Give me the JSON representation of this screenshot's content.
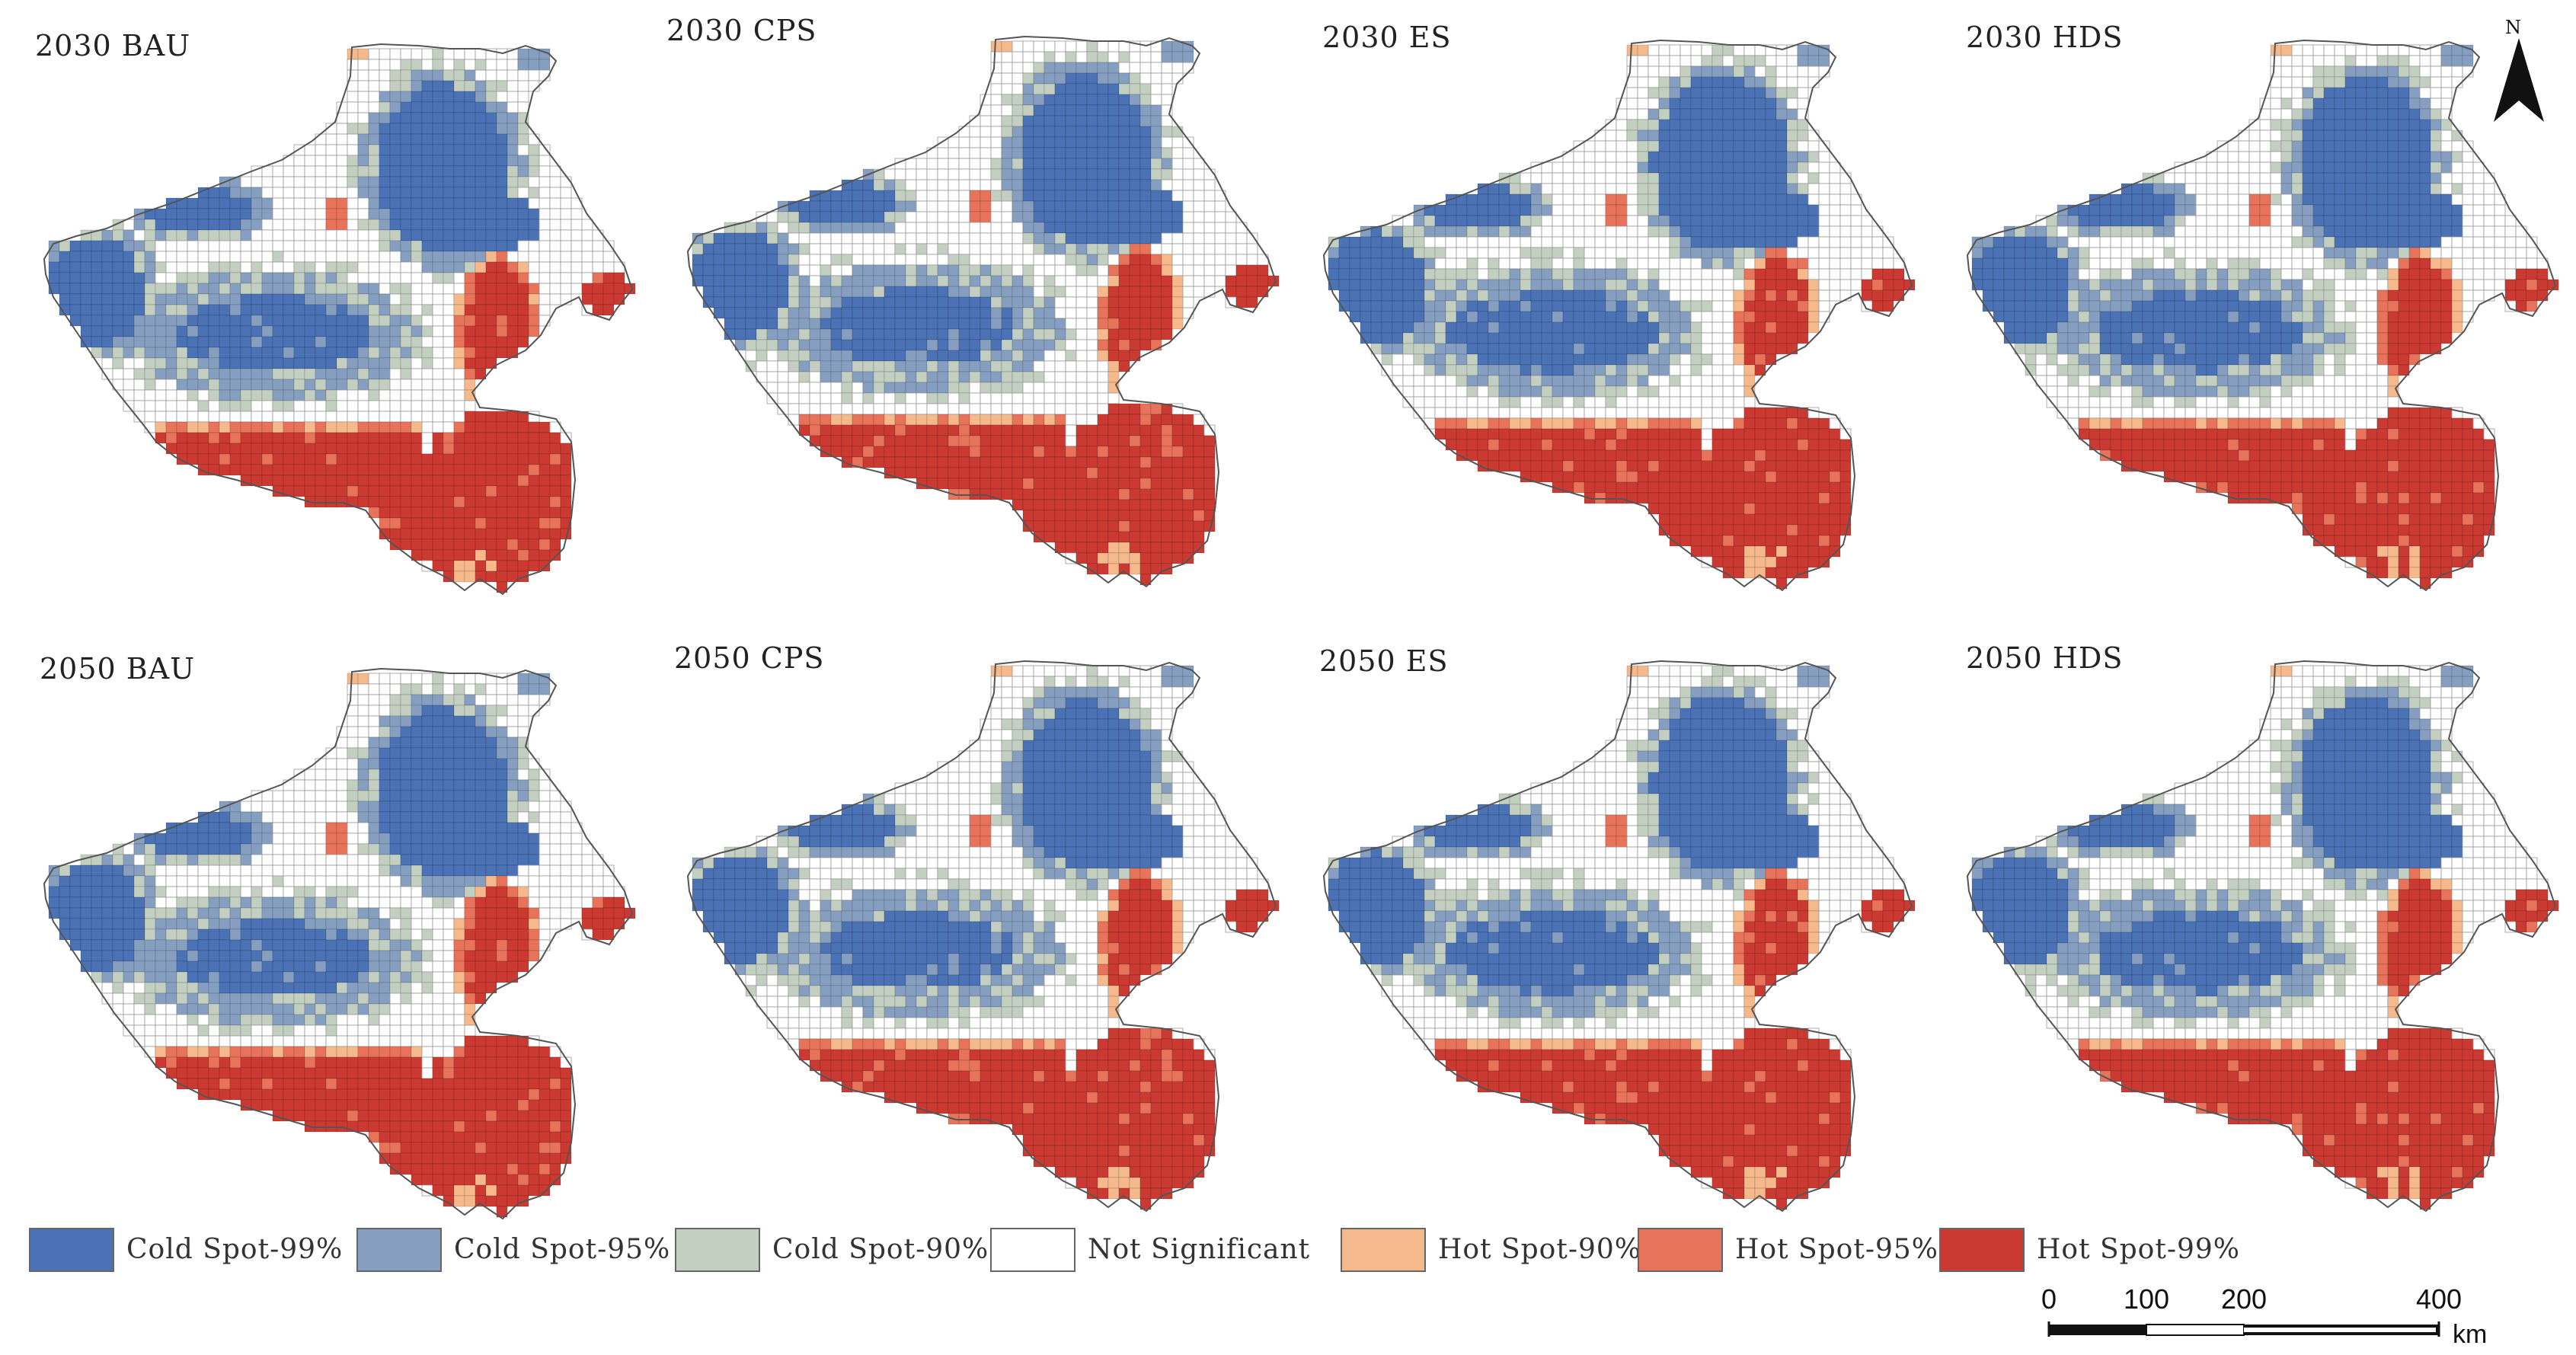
{
  "panels": [
    {
      "title": "2030 BAU",
      "variant": 0
    },
    {
      "title": "2030 CPS",
      "variant": 1
    },
    {
      "title": "2030 ES",
      "variant": 2
    },
    {
      "title": "2030 HDS",
      "variant": 3
    },
    {
      "title": "2050 BAU",
      "variant": 0
    },
    {
      "title": "2050 CPS",
      "variant": 1
    },
    {
      "title": "2050 ES",
      "variant": 2
    },
    {
      "title": "2050 HDS",
      "variant": 3
    }
  ],
  "legend": [
    {
      "label": "Cold Spot-99%",
      "color": "#4a72b4"
    },
    {
      "label": "Cold Spot-95%",
      "color": "#869fc0"
    },
    {
      "label": "Cold Spot-90%",
      "color": "#c3cfc1"
    },
    {
      "label": "Not Significant",
      "color": "#ffffff"
    },
    {
      "label": "Hot Spot-90%",
      "color": "#f6b98c"
    },
    {
      "label": "Hot Spot-95%",
      "color": "#e7735a"
    },
    {
      "label": "Hot Spot-99%",
      "color": "#cb3a32"
    }
  ],
  "north_arrow": {
    "label": "N"
  },
  "scale_bar": {
    "ticks": [
      "0",
      "100",
      "200",
      "400"
    ],
    "unit": "km"
  }
}
